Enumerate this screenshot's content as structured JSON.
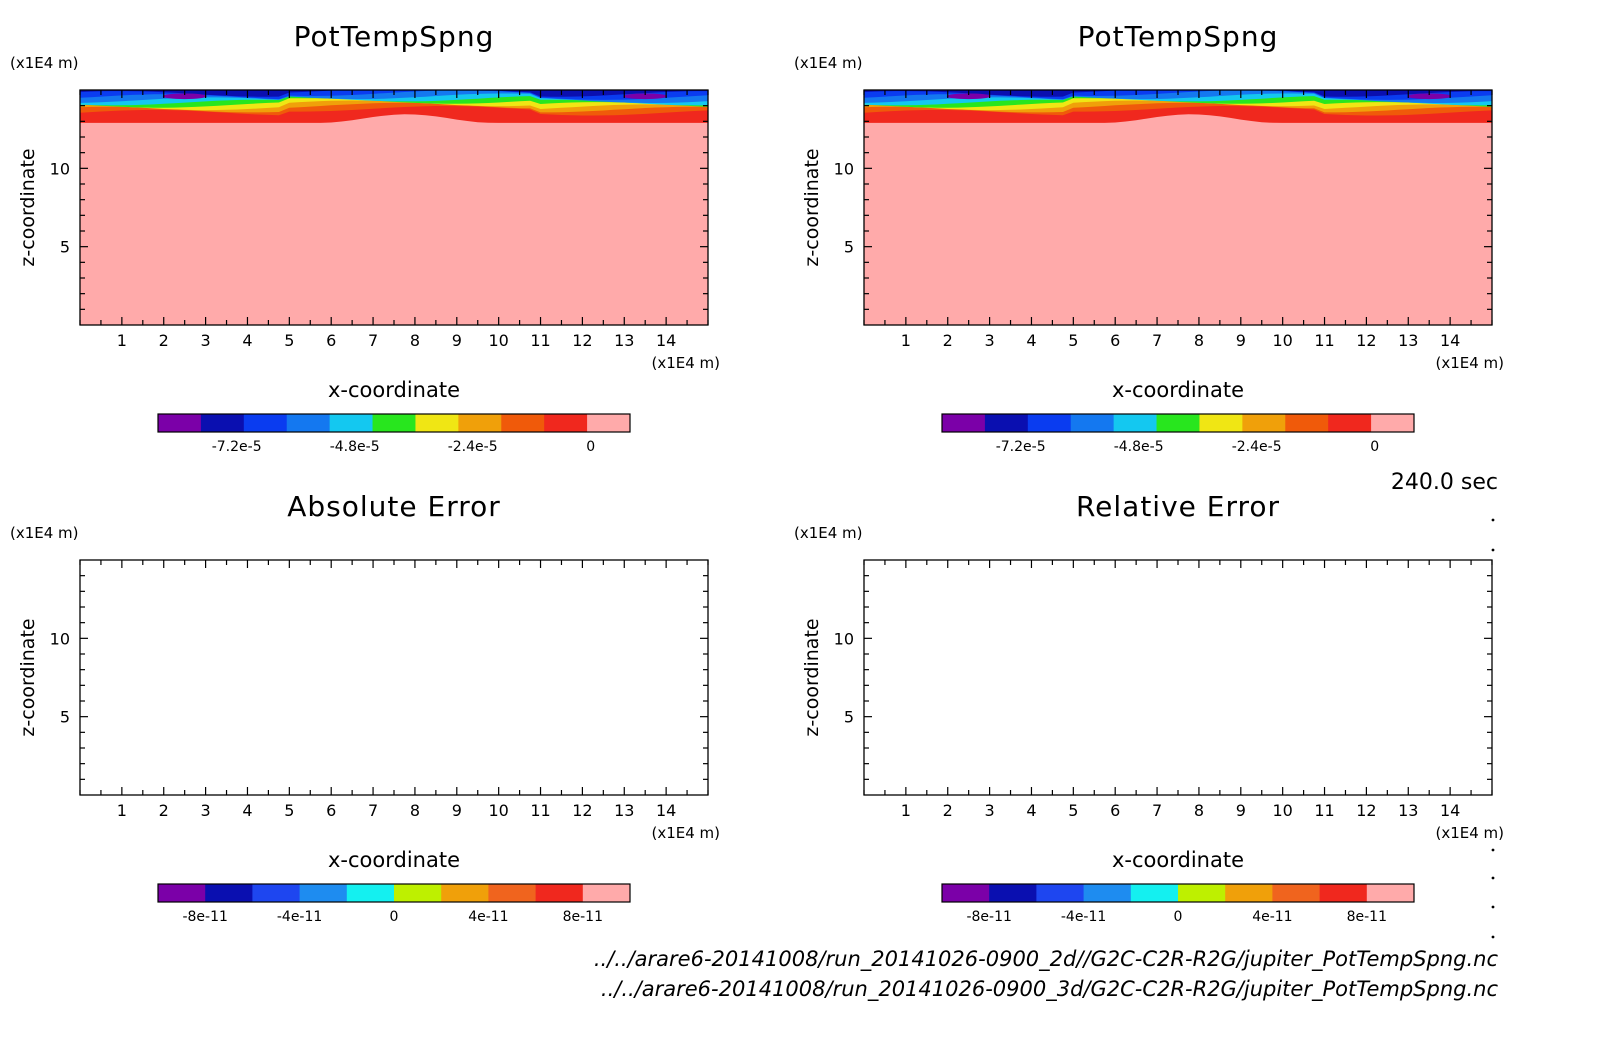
{
  "time_label": "240.0 sec",
  "file_paths": [
    "../../arare6-20141008/run_20141026-0900_2d//G2C-C2R-R2G/jupiter_PotTempSpng.nc",
    "../../arare6-20141008/run_20141026-0900_3d/G2C-C2R-R2G/jupiter_PotTempSpng.nc"
  ],
  "chart_data": [
    {
      "type": "heatmap",
      "title": "PotTempSpng",
      "xlabel": "x-coordinate",
      "ylabel": "z-coordinate",
      "x_unit": "(x1E4 m)",
      "y_unit": "(x1E4 m)",
      "xlim": [
        0,
        15
      ],
      "ylim": [
        0,
        15
      ],
      "x_ticks": [
        1,
        2,
        3,
        4,
        5,
        6,
        7,
        8,
        9,
        10,
        11,
        12,
        13,
        14
      ],
      "y_ticks": [
        5,
        10
      ],
      "filled": true,
      "colorbar": {
        "colors": [
          "#7b00a8",
          "#0a0fb0",
          "#0a3cf0",
          "#1478f0",
          "#14c8f0",
          "#28e61e",
          "#f0e614",
          "#f0a00a",
          "#f05a0a",
          "#f0281e",
          "#ffaaaa"
        ],
        "min": -8.8e-05,
        "max": 8e-06,
        "tick_values": [
          -7.2e-05,
          -4.8e-05,
          -2.4e-05,
          0
        ],
        "tick_labels": [
          "-7.2e-5",
          "-4.8e-5",
          "-2.4e-5",
          "0"
        ]
      }
    },
    {
      "type": "heatmap",
      "title": "PotTempSpng",
      "xlabel": "x-coordinate",
      "ylabel": "z-coordinate",
      "x_unit": "(x1E4 m)",
      "y_unit": "(x1E4 m)",
      "xlim": [
        0,
        15
      ],
      "ylim": [
        0,
        15
      ],
      "x_ticks": [
        1,
        2,
        3,
        4,
        5,
        6,
        7,
        8,
        9,
        10,
        11,
        12,
        13,
        14
      ],
      "y_ticks": [
        5,
        10
      ],
      "filled": true,
      "colorbar": {
        "colors": [
          "#7b00a8",
          "#0a0fb0",
          "#0a3cf0",
          "#1478f0",
          "#14c8f0",
          "#28e61e",
          "#f0e614",
          "#f0a00a",
          "#f05a0a",
          "#f0281e",
          "#ffaaaa"
        ],
        "min": -8.8e-05,
        "max": 8e-06,
        "tick_values": [
          -7.2e-05,
          -4.8e-05,
          -2.4e-05,
          0
        ],
        "tick_labels": [
          "-7.2e-5",
          "-4.8e-5",
          "-2.4e-5",
          "0"
        ]
      }
    },
    {
      "type": "heatmap",
      "title": "Absolute Error",
      "xlabel": "x-coordinate",
      "ylabel": "z-coordinate",
      "x_unit": "(x1E4 m)",
      "y_unit": "(x1E4 m)",
      "xlim": [
        0,
        15
      ],
      "ylim": [
        0,
        15
      ],
      "x_ticks": [
        1,
        2,
        3,
        4,
        5,
        6,
        7,
        8,
        9,
        10,
        11,
        12,
        13,
        14
      ],
      "y_ticks": [
        5,
        10
      ],
      "filled": false,
      "colorbar": {
        "colors": [
          "#7b00a8",
          "#0a0fb0",
          "#1e46f0",
          "#1e8cf0",
          "#14f0f0",
          "#bef000",
          "#f0a00a",
          "#f0641e",
          "#f0281e",
          "#ffaaaa"
        ],
        "min": -1e-10,
        "max": 1e-10,
        "tick_values": [
          -8e-11,
          -4e-11,
          0,
          4e-11,
          8e-11
        ],
        "tick_labels": [
          "-8e-11",
          "-4e-11",
          "0",
          "4e-11",
          "8e-11"
        ]
      }
    },
    {
      "type": "heatmap",
      "title": "Relative Error",
      "xlabel": "x-coordinate",
      "ylabel": "z-coordinate",
      "x_unit": "(x1E4 m)",
      "y_unit": "(x1E4 m)",
      "xlim": [
        0,
        15
      ],
      "ylim": [
        0,
        15
      ],
      "x_ticks": [
        1,
        2,
        3,
        4,
        5,
        6,
        7,
        8,
        9,
        10,
        11,
        12,
        13,
        14
      ],
      "y_ticks": [
        5,
        10
      ],
      "filled": false,
      "colorbar": {
        "colors": [
          "#7b00a8",
          "#0a0fb0",
          "#1e46f0",
          "#1e8cf0",
          "#14f0f0",
          "#bef000",
          "#f0a00a",
          "#f0641e",
          "#f0281e",
          "#ffaaaa"
        ],
        "min": -1e-10,
        "max": 1e-10,
        "tick_values": [
          -8e-11,
          -4e-11,
          0,
          4e-11,
          8e-11
        ],
        "tick_labels": [
          "-8e-11",
          "-4e-11",
          "0",
          "4e-11",
          "8e-11"
        ]
      }
    }
  ]
}
